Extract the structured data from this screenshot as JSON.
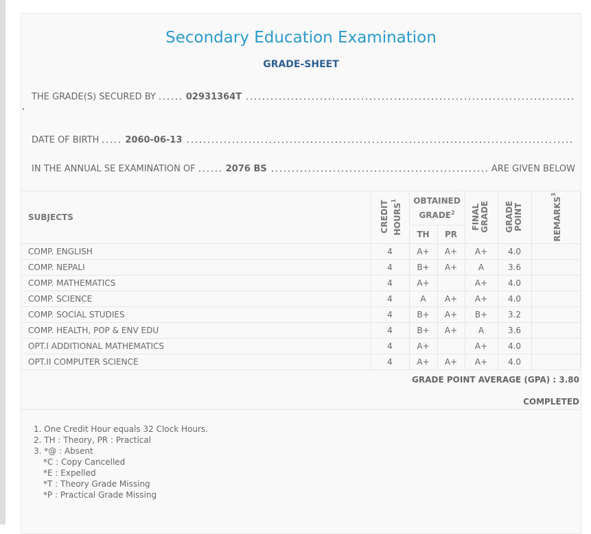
{
  "title": "Secondary Education Examination",
  "subtitle": "GRADE-SHEET",
  "secured_by": {
    "label": "THE GRADE(S) SECURED BY",
    "value": "02931364T"
  },
  "dob": {
    "label": "DATE OF BIRTH",
    "value": "2060-06-13"
  },
  "exam": {
    "label": "IN THE ANNUAL SE EXAMINATION OF",
    "value": "2076 BS",
    "suffix": "ARE GIVEN BELOW"
  },
  "table": {
    "headers": {
      "subjects": "SUBJECTS",
      "credit": "CREDIT HOURS",
      "credit_sup": "1",
      "obtained": "OBTAINED GRADE",
      "obtained_sup": "2",
      "th": "TH",
      "pr": "PR",
      "final": "FINAL GRADE",
      "gp": "GRADE POINT",
      "remarks": "REMARKS",
      "remarks_sup": "3"
    },
    "rows": [
      {
        "subject": "COMP. ENGLISH",
        "credit": "4",
        "th": "A+",
        "pr": "A+",
        "final": "A+",
        "gp": "4.0",
        "remarks": ""
      },
      {
        "subject": "COMP. NEPALI",
        "credit": "4",
        "th": "B+",
        "pr": "A+",
        "final": "A",
        "gp": "3.6",
        "remarks": ""
      },
      {
        "subject": "COMP. MATHEMATICS",
        "credit": "4",
        "th": "A+",
        "pr": "",
        "final": "A+",
        "gp": "4.0",
        "remarks": ""
      },
      {
        "subject": "COMP. SCIENCE",
        "credit": "4",
        "th": "A",
        "pr": "A+",
        "final": "A+",
        "gp": "4.0",
        "remarks": ""
      },
      {
        "subject": "COMP. SOCIAL STUDIES",
        "credit": "4",
        "th": "B+",
        "pr": "A+",
        "final": "B+",
        "gp": "3.2",
        "remarks": ""
      },
      {
        "subject": "COMP. HEALTH, POP & ENV EDU",
        "credit": "4",
        "th": "B+",
        "pr": "A+",
        "final": "A",
        "gp": "3.6",
        "remarks": ""
      },
      {
        "subject": "OPT.I ADDITIONAL MATHEMATICS",
        "credit": "4",
        "th": "A+",
        "pr": "",
        "final": "A+",
        "gp": "4.0",
        "remarks": ""
      },
      {
        "subject": "OPT.II COMPUTER SCIENCE",
        "credit": "4",
        "th": "A+",
        "pr": "A+",
        "final": "A+",
        "gp": "4.0",
        "remarks": ""
      }
    ]
  },
  "gpa": "GRADE POINT AVERAGE (GPA) : 3.80",
  "status": "COMPLETED",
  "notes": [
    "1. One Credit Hour equals 32 Clock Hours.",
    "2. TH : Theory, PR : Practical",
    "3. *@ : Absent"
  ],
  "sub_notes": [
    "*C : Copy Cancelled",
    "*E : Expelled",
    "*T : Theory Grade Missing",
    "*P : Practical Grade Missing"
  ]
}
